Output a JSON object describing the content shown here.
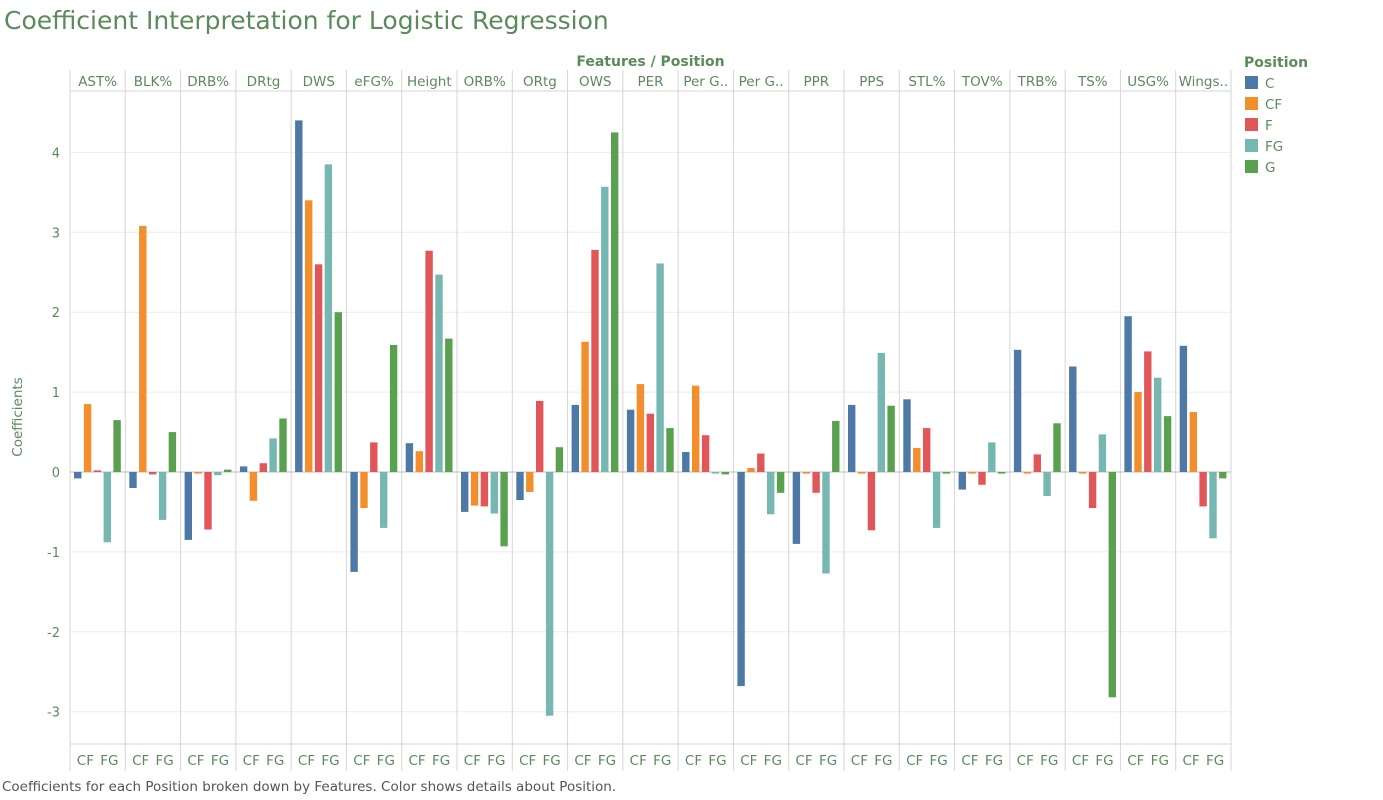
{
  "title": "Coefficient Interpretation for Logistic Regression",
  "caption": "Coefficients for each Position broken down by Features.  Color shows details about Position.",
  "chart_data": {
    "type": "bar",
    "header": "Features / Position",
    "ylabel": "Coefficients",
    "ylim": [
      -3.5,
      4.7
    ],
    "yticks": [
      4,
      3,
      2,
      1,
      0,
      -1,
      -2,
      -3
    ],
    "grid": true,
    "bottom_labels": [
      "CF",
      "FG"
    ],
    "legend": {
      "title": "Position",
      "placement": "top-right",
      "entries": [
        "C",
        "CF",
        "F",
        "FG",
        "G"
      ]
    },
    "colors": {
      "C": "#4e79a7",
      "CF": "#f28e2b",
      "F": "#e15759",
      "FG": "#76b7b2",
      "G": "#59a14f",
      "axis_text": "#5b8a5b",
      "grid": "#ececec",
      "divider": "#d6d6d6"
    },
    "categories": [
      "AST%",
      "BLK%",
      "DRB%",
      "DRtg",
      "DWS",
      "eFG%",
      "Height",
      "ORB%",
      "ORtg",
      "OWS",
      "PER",
      "Per G..",
      "Per G..",
      "PPR",
      "PPS",
      "STL%",
      "TOV%",
      "TRB%",
      "TS%",
      "USG%",
      "Wings.."
    ],
    "series": [
      {
        "name": "C",
        "values": [
          -0.08,
          -0.2,
          -0.85,
          0.07,
          4.4,
          -1.25,
          0.36,
          -0.5,
          -0.35,
          0.84,
          0.78,
          0.25,
          -2.68,
          -0.9,
          0.84,
          0.91,
          -0.22,
          1.53,
          1.32,
          1.95,
          1.58
        ]
      },
      {
        "name": "CF",
        "values": [
          0.85,
          3.08,
          -0.02,
          -0.36,
          3.4,
          -0.45,
          0.26,
          -0.42,
          -0.25,
          1.63,
          1.1,
          1.08,
          0.05,
          -0.02,
          -0.02,
          0.3,
          -0.02,
          -0.02,
          -0.02,
          1.0,
          0.75
        ]
      },
      {
        "name": "F",
        "values": [
          0.02,
          -0.03,
          -0.72,
          0.11,
          2.6,
          0.37,
          2.77,
          -0.43,
          0.89,
          2.78,
          0.73,
          0.46,
          0.23,
          -0.26,
          -0.73,
          0.55,
          -0.16,
          0.22,
          -0.45,
          1.51,
          -0.43
        ]
      },
      {
        "name": "FG",
        "values": [
          -0.88,
          -0.6,
          -0.04,
          0.42,
          3.85,
          -0.7,
          2.47,
          -0.52,
          -3.05,
          3.57,
          2.61,
          -0.02,
          -0.53,
          -1.27,
          1.49,
          -0.7,
          0.37,
          -0.3,
          0.47,
          1.18,
          -0.83
        ]
      },
      {
        "name": "G",
        "values": [
          0.65,
          0.5,
          0.03,
          0.67,
          2.0,
          1.59,
          1.67,
          -0.93,
          0.31,
          4.25,
          0.55,
          -0.03,
          -0.26,
          0.64,
          0.83,
          -0.02,
          -0.02,
          0.61,
          -2.82,
          0.7,
          -0.08
        ]
      }
    ]
  }
}
